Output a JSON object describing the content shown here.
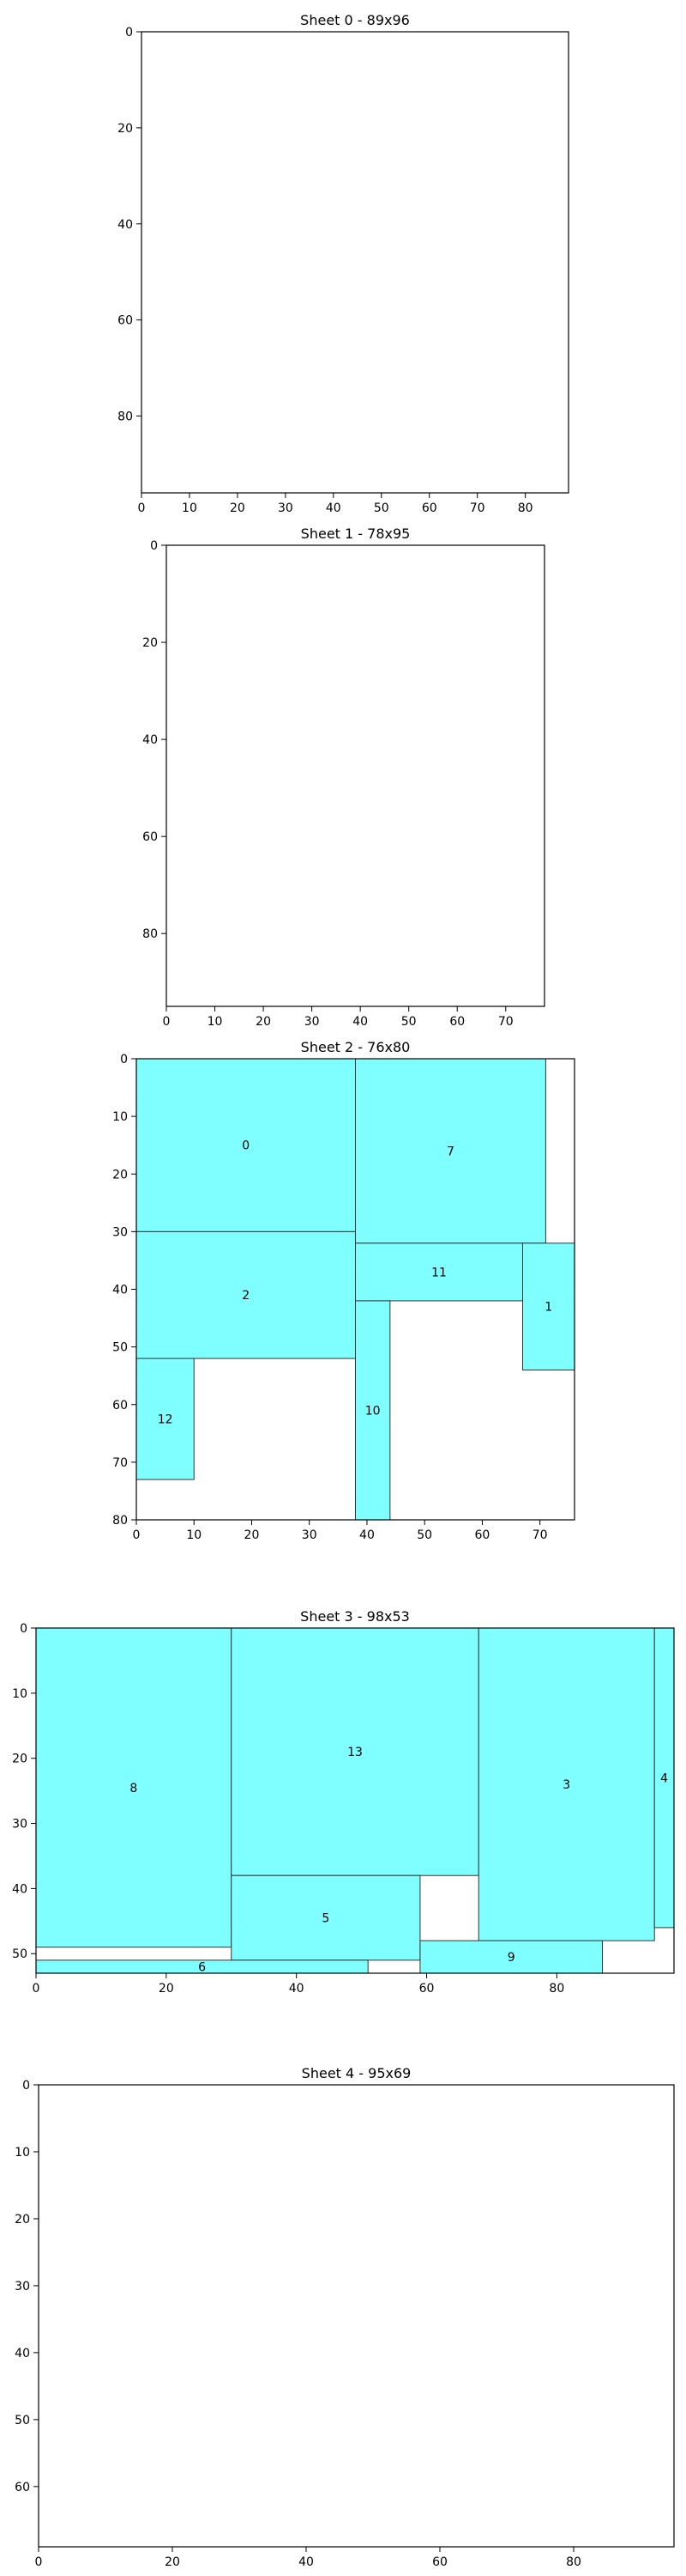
{
  "chart_data": [
    {
      "type": "bin-packing-sheet",
      "title": "Sheet 0 - 89x96",
      "sheet": {
        "width": 89,
        "height": 96
      },
      "xlim": [
        0,
        89
      ],
      "ylim": [
        0,
        96
      ],
      "y_inverted": true,
      "xticks": [
        0,
        10,
        20,
        30,
        40,
        50,
        60,
        70,
        80
      ],
      "yticks": [
        0,
        20,
        40,
        60,
        80
      ],
      "fill": "#7fffff",
      "edge": "#333333",
      "rectangles": []
    },
    {
      "type": "bin-packing-sheet",
      "title": "Sheet 1 - 78x95",
      "sheet": {
        "width": 78,
        "height": 95
      },
      "xlim": [
        0,
        78
      ],
      "ylim": [
        0,
        95
      ],
      "y_inverted": true,
      "xticks": [
        0,
        10,
        20,
        30,
        40,
        50,
        60,
        70
      ],
      "yticks": [
        0,
        20,
        40,
        60,
        80
      ],
      "fill": "#7fffff",
      "edge": "#333333",
      "rectangles": []
    },
    {
      "type": "bin-packing-sheet",
      "title": "Sheet 2 - 76x80",
      "sheet": {
        "width": 76,
        "height": 80
      },
      "xlim": [
        0,
        76
      ],
      "ylim": [
        0,
        80
      ],
      "y_inverted": true,
      "xticks": [
        0,
        10,
        20,
        30,
        40,
        50,
        60,
        70
      ],
      "yticks": [
        0,
        10,
        20,
        30,
        40,
        50,
        60,
        70,
        80
      ],
      "fill": "#7fffff",
      "edge": "#333333",
      "rectangles": [
        {
          "id": "0",
          "x": 0,
          "y": 0,
          "w": 38,
          "h": 30
        },
        {
          "id": "7",
          "x": 38,
          "y": 0,
          "w": 33,
          "h": 32
        },
        {
          "id": "2",
          "x": 0,
          "y": 30,
          "w": 38,
          "h": 22
        },
        {
          "id": "11",
          "x": 38,
          "y": 32,
          "w": 29,
          "h": 10
        },
        {
          "id": "1",
          "x": 67,
          "y": 32,
          "w": 9,
          "h": 22
        },
        {
          "id": "12",
          "x": 0,
          "y": 52,
          "w": 10,
          "h": 21
        },
        {
          "id": "10",
          "x": 38,
          "y": 42,
          "w": 6,
          "h": 38
        }
      ]
    },
    {
      "type": "bin-packing-sheet",
      "title": "Sheet 3 - 98x53",
      "sheet": {
        "width": 98,
        "height": 53
      },
      "xlim": [
        0,
        98
      ],
      "ylim": [
        0,
        53
      ],
      "y_inverted": true,
      "xticks": [
        0,
        20,
        40,
        60,
        80
      ],
      "yticks": [
        0,
        10,
        20,
        30,
        40,
        50
      ],
      "fill": "#7fffff",
      "edge": "#333333",
      "rectangles": [
        {
          "id": "8",
          "x": 0,
          "y": 0,
          "w": 30,
          "h": 49
        },
        {
          "id": "13",
          "x": 30,
          "y": 0,
          "w": 38,
          "h": 38
        },
        {
          "id": "3",
          "x": 68,
          "y": 0,
          "w": 27,
          "h": 48
        },
        {
          "id": "4",
          "x": 95,
          "y": 0,
          "w": 3,
          "h": 46
        },
        {
          "id": "5",
          "x": 30,
          "y": 38,
          "w": 29,
          "h": 13
        },
        {
          "id": "9",
          "x": 59,
          "y": 48,
          "w": 28,
          "h": 5
        },
        {
          "id": "6",
          "x": 0,
          "y": 51,
          "w": 51,
          "h": 2
        }
      ]
    },
    {
      "type": "bin-packing-sheet",
      "title": "Sheet 4 - 95x69",
      "sheet": {
        "width": 95,
        "height": 69
      },
      "xlim": [
        0,
        95
      ],
      "ylim": [
        0,
        69
      ],
      "y_inverted": true,
      "xticks": [
        0,
        20,
        40,
        60,
        80
      ],
      "yticks": [
        0,
        10,
        20,
        30,
        40,
        50,
        60
      ],
      "fill": "#7fffff",
      "edge": "#333333",
      "rectangles": []
    }
  ]
}
